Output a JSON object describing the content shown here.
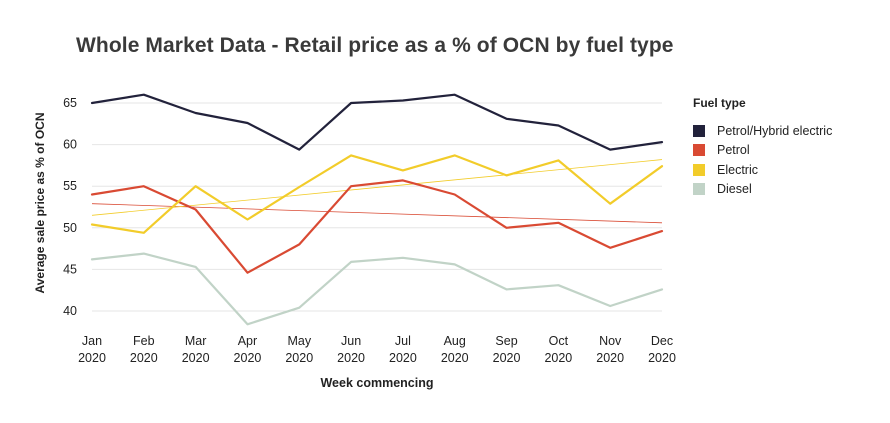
{
  "chart_data": {
    "type": "line",
    "title": "Whole Market Data - Retail price as a % of OCN by fuel type",
    "xlabel": "Week commencing",
    "ylabel": "Average sale price as % of OCN",
    "ylim": [
      37,
      68
    ],
    "yticks": [
      40,
      45,
      50,
      55,
      60,
      65
    ],
    "grid": true,
    "legend_title": "Fuel type",
    "legend_position": "right",
    "categories": [
      [
        "Jan",
        "2020"
      ],
      [
        "Feb",
        "2020"
      ],
      [
        "Mar",
        "2020"
      ],
      [
        "Apr",
        "2020"
      ],
      [
        "May",
        "2020"
      ],
      [
        "Jun",
        "2020"
      ],
      [
        "Jul",
        "2020"
      ],
      [
        "Aug",
        "2020"
      ],
      [
        "Sep",
        "2020"
      ],
      [
        "Oct",
        "2020"
      ],
      [
        "Nov",
        "2020"
      ],
      [
        "Dec",
        "2020"
      ]
    ],
    "series": [
      {
        "name": "Petrol/Hybrid electric",
        "color": "#22223b",
        "values": [
          65.0,
          66.0,
          63.8,
          62.6,
          59.4,
          65.0,
          65.3,
          66.0,
          63.1,
          62.3,
          59.4,
          60.3
        ]
      },
      {
        "name": "Petrol",
        "color": "#d94a33",
        "values": [
          54.0,
          55.0,
          52.2,
          44.6,
          48.0,
          55.0,
          55.7,
          54.0,
          50.0,
          50.6,
          47.6,
          49.6
        ]
      },
      {
        "name": "Electric",
        "color": "#f2cc2a",
        "values": [
          50.4,
          49.4,
          55.0,
          51.0,
          54.9,
          58.7,
          56.9,
          58.7,
          56.3,
          58.1,
          52.9,
          57.4
        ]
      },
      {
        "name": "Diesel",
        "color": "#c1d3c7",
        "values": [
          46.2,
          46.9,
          45.3,
          38.4,
          40.4,
          45.9,
          46.4,
          45.6,
          42.6,
          43.1,
          40.6,
          42.6
        ]
      }
    ],
    "trendlines": [
      {
        "series": "Petrol",
        "color": "#d94a33",
        "start": 52.9,
        "end": 50.6
      },
      {
        "series": "Electric",
        "color": "#f2cc2a",
        "start": 51.5,
        "end": 58.2
      }
    ]
  }
}
